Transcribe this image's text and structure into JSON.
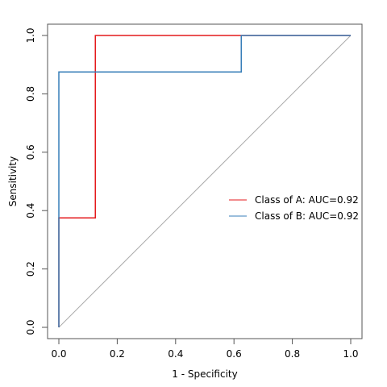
{
  "chart_data": {
    "type": "line",
    "xlabel": "1 - Specificity",
    "ylabel": "Sensitivity",
    "xlim": [
      0,
      1
    ],
    "ylim": [
      0,
      1
    ],
    "x_ticks": [
      "0.0",
      "0.2",
      "0.4",
      "0.6",
      "0.8",
      "1.0"
    ],
    "y_ticks": [
      "0.0",
      "0.2",
      "0.4",
      "0.6",
      "0.8",
      "1.0"
    ],
    "grid": false,
    "legend_position": "right",
    "reference_line": {
      "x": [
        0,
        1
      ],
      "y": [
        0,
        1
      ],
      "color": "#aaaaaa"
    },
    "series": [
      {
        "name": "Class of A: AUC=0.92",
        "color": "#e41a1c",
        "x": [
          0,
          0,
          0.125,
          0.125,
          1
        ],
        "y": [
          0,
          0.375,
          0.375,
          1,
          1
        ]
      },
      {
        "name": "Class of B: AUC=0.92",
        "color": "#377eb8",
        "x": [
          0,
          0,
          0.625,
          0.625,
          1
        ],
        "y": [
          0,
          0.875,
          0.875,
          1,
          1
        ]
      }
    ]
  }
}
